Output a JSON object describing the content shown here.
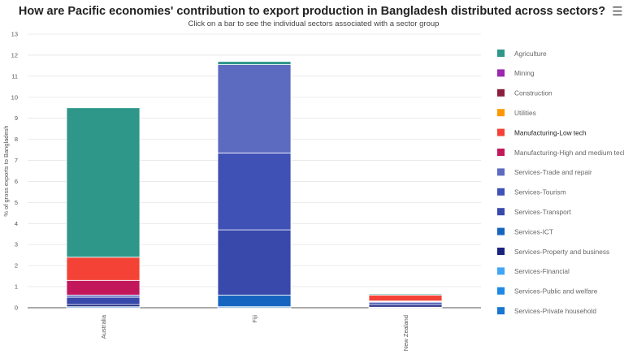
{
  "title": "How are Pacific economies' contribution to export production in Bangladesh distributed across sectors?",
  "subtitle": "Click on a bar to see the individual sectors associated with a sector group",
  "menu_icon": "hamburger-menu-icon",
  "chart_data": {
    "type": "bar",
    "stacked": true,
    "categories": [
      "Australia",
      "Fiji",
      "New Zealand"
    ],
    "ylabel": "% of gross exports to Bangladesh",
    "ylim": [
      0,
      13
    ],
    "yticks": [
      "0",
      "1",
      "2",
      "3",
      "4",
      "5",
      "6",
      "7",
      "8",
      "9",
      "10",
      "11",
      "12",
      "13"
    ],
    "grid": true,
    "legend_position": "right",
    "series": [
      {
        "name": "Agriculture",
        "color": "#2e978a",
        "values": [
          7.1,
          0.15,
          0.05
        ]
      },
      {
        "name": "Mining",
        "color": "#9c27b0",
        "values": [
          0.0,
          0.0,
          0.0
        ]
      },
      {
        "name": "Construction",
        "color": "#8a1e3c",
        "values": [
          0.0,
          0.0,
          0.0
        ]
      },
      {
        "name": "Utilities",
        "color": "#ff9800",
        "values": [
          0.0,
          0.0,
          0.0
        ]
      },
      {
        "name": "Manufacturing-Low tech",
        "color": "#f44336",
        "values": [
          1.1,
          0.0,
          0.28
        ]
      },
      {
        "name": "Manufacturing-High and medium tech",
        "color": "#c2185b",
        "values": [
          0.7,
          0.0,
          0.03
        ]
      },
      {
        "name": "Services-Trade and repair",
        "color": "#5c6bc0",
        "values": [
          0.1,
          4.2,
          0.05
        ]
      },
      {
        "name": "Services-Tourism",
        "color": "#3f51b5",
        "values": [
          0.0,
          3.65,
          0.0
        ]
      },
      {
        "name": "Services-Transport",
        "color": "#3949ab",
        "values": [
          0.35,
          3.1,
          0.11
        ]
      },
      {
        "name": "Services-ICT",
        "color": "#1565c0",
        "values": [
          0.0,
          0.55,
          0.0
        ]
      },
      {
        "name": "Services-Property and business",
        "color": "#1a237e",
        "values": [
          0.1,
          0.0,
          0.1
        ]
      },
      {
        "name": "Services-Financial",
        "color": "#42a5f5",
        "values": [
          0.0,
          0.0,
          0.0
        ]
      },
      {
        "name": "Services-Public and welfare",
        "color": "#1e88e5",
        "values": [
          0.0,
          0.0,
          0.0
        ]
      },
      {
        "name": "Services-Private household",
        "color": "#1976d2",
        "values": [
          0.05,
          0.05,
          0.03
        ]
      }
    ],
    "highlighted_legend_item": "Manufacturing-Low tech"
  }
}
